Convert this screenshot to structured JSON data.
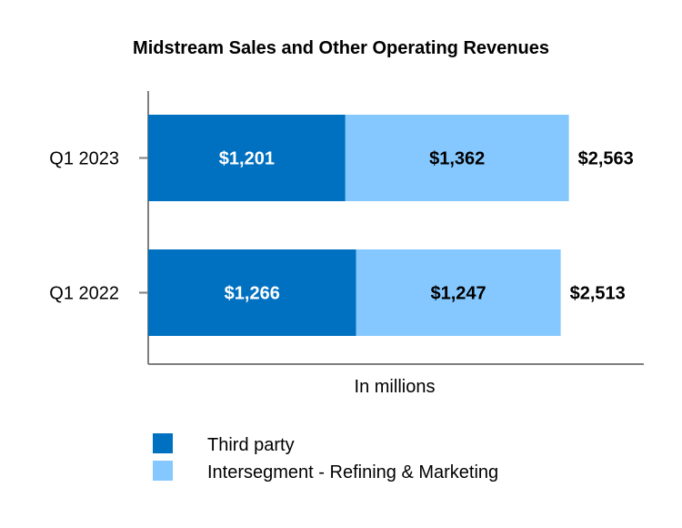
{
  "chart_data": {
    "type": "bar",
    "orientation": "horizontal",
    "stacked": true,
    "title": "Midstream Sales and Other Operating Revenues",
    "xlabel": "In millions",
    "ylabel": "",
    "categories": [
      "Q1 2023",
      "Q1 2022"
    ],
    "series": [
      {
        "name": "Third party",
        "values": [
          1201,
          1266
        ],
        "labels": [
          "$1,201",
          "$1,266"
        ],
        "color": "#0070C0",
        "label_color": "#FFFFFF"
      },
      {
        "name": "Intersegment - Refining & Marketing",
        "values": [
          1362,
          1247
        ],
        "labels": [
          "$1,362",
          "$1,247"
        ],
        "color": "#85C8FF",
        "label_color": "#000000"
      }
    ],
    "totals": [
      "$2,563",
      "$2,513"
    ],
    "xlim": [
      0,
      3000
    ],
    "grid": false,
    "legend": "bottom-left"
  }
}
